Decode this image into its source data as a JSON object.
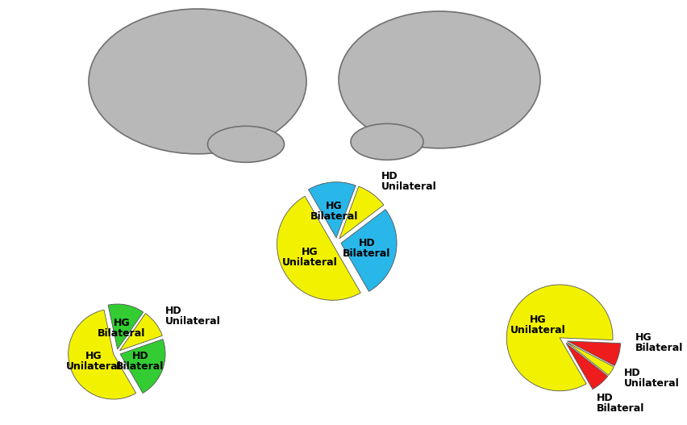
{
  "chart_data": [
    {
      "type": "pie",
      "categories": [
        "HD Bilateral",
        "HD Unilateral",
        "HG Bilateral",
        "HG Unilateral"
      ],
      "values": [
        27,
        9,
        14,
        50
      ],
      "colors": [
        "#29b6e8",
        "#f2f200",
        "#29b6e8",
        "#f2f200"
      ]
    },
    {
      "type": "pie",
      "categories": [
        "HD Bilateral",
        "HD Unilateral",
        "HG Bilateral",
        "HG Unilateral"
      ],
      "values": [
        22,
        10,
        13,
        55
      ],
      "colors": [
        "#33cc33",
        "#f2f200",
        "#33cc33",
        "#f2f200"
      ]
    },
    {
      "type": "pie",
      "categories": [
        "HD Bilateral",
        "HD Unilateral",
        "HG Bilateral",
        "HG Unilateral"
      ],
      "values": [
        6,
        3,
        7,
        84
      ],
      "colors": [
        "#ee1c1c",
        "#f2f200",
        "#ee1c1c",
        "#f2f200"
      ]
    }
  ]
}
